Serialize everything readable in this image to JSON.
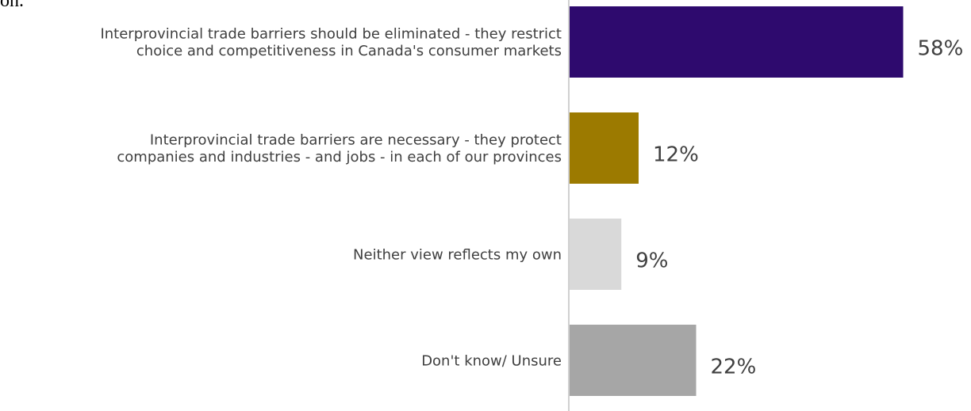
{
  "chart_data": {
    "type": "hbar",
    "title": "on.",
    "categories": [
      "Interprovincial trade barriers should be eliminated - they restrict\nchoice and competitiveness in Canada's consumer markets",
      "Interprovincial trade barriers are necessary - they protect\ncompanies and industries - and jobs - in each of our provinces",
      "Neither view reflects my own",
      "Don't know/ Unsure"
    ],
    "values": [
      58,
      12,
      9,
      22
    ],
    "value_labels": [
      "58%",
      "12%",
      "9%",
      "22%"
    ],
    "colors": [
      "#2e0a6e",
      "#9c7a00",
      "#d9d9d9",
      "#a6a6a6"
    ],
    "xlim": [
      0,
      60
    ]
  }
}
